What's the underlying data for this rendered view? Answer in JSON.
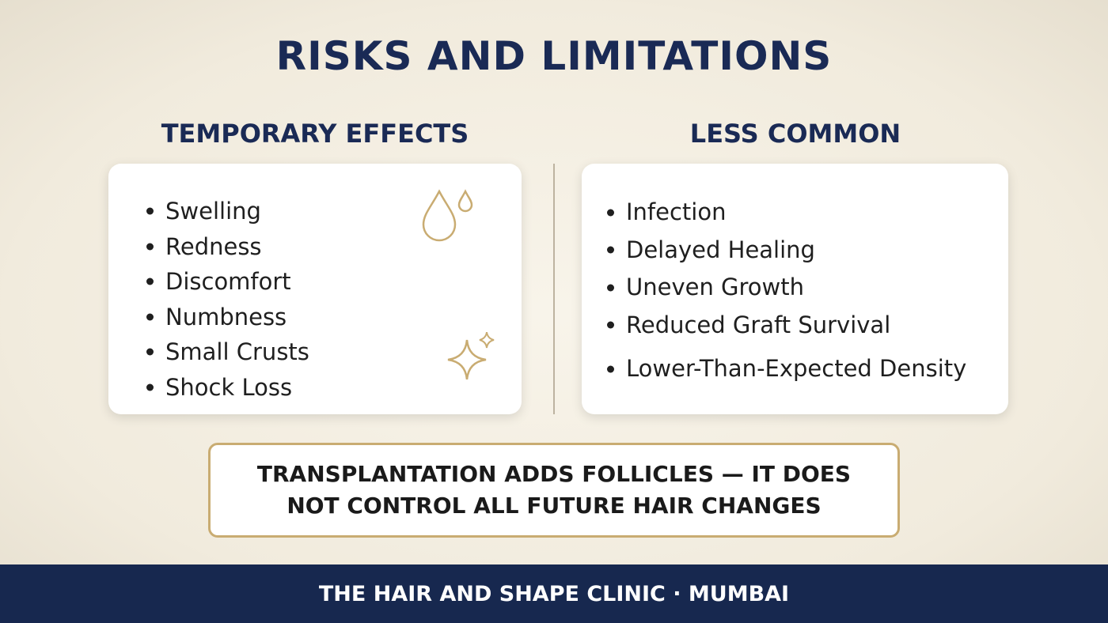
{
  "title": "RISKS AND LIMITATIONS",
  "columns": [
    {
      "heading": "TEMPORARY EFFECTS",
      "items": [
        "Swelling",
        "Redness",
        "Discomfort",
        "Numbness",
        "Small Crusts",
        "Shock Loss"
      ]
    },
    {
      "heading": "LESS COMMON",
      "items": [
        "Infection",
        "Delayed Healing",
        "Uneven Growth",
        "Reduced Graft Survival",
        "Lower-Than-Expected Density"
      ]
    }
  ],
  "callout": "TRANSPLANTATION ADDS FOLLICLES — IT DOES NOT CONTROL ALL FUTURE HAIR CHANGES",
  "footer": "THE HAIR AND SHAPE CLINIC · MUMBAI"
}
